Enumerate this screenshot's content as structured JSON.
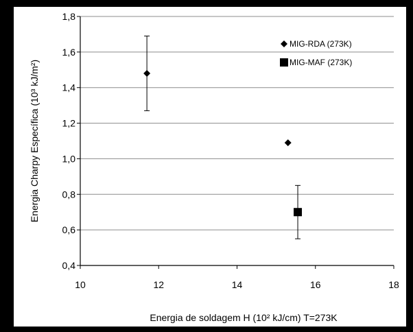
{
  "chart_data": {
    "type": "scatter",
    "xlabel": "Energia de soldagem H (10² kJ/cm)",
    "xlabel_suffix": "T=273K",
    "ylabel": "Energia Charpy Específica (10³ kJ/m²)",
    "xlim": [
      10,
      18
    ],
    "ylim": [
      0.4,
      1.8
    ],
    "x_ticks": [
      10,
      12,
      14,
      16,
      18
    ],
    "x_tick_labels": [
      "10",
      "12",
      "14",
      "16",
      "18"
    ],
    "y_ticks": [
      0.4,
      0.6,
      0.8,
      1.0,
      1.2,
      1.4,
      1.6,
      1.8
    ],
    "y_tick_labels": [
      "0,4",
      "0,6",
      "0,8",
      "1,0",
      "1,2",
      "1,4",
      "1,6",
      "1,8"
    ],
    "grid": "horizontal",
    "legend_position": "top-right",
    "series": [
      {
        "name": "MIG-RDA (273K)",
        "marker": "diamond",
        "color": "#000000",
        "points": [
          {
            "x": 11.7,
            "y": 1.48,
            "ylow": 1.27,
            "yhigh": 1.69
          },
          {
            "x": 15.3,
            "y": 1.09
          }
        ]
      },
      {
        "name": "MIG-MAF (273K)",
        "marker": "square",
        "color": "#000000",
        "points": [
          {
            "x": 15.55,
            "y": 0.7,
            "ylow": 0.55,
            "yhigh": 0.85
          }
        ]
      }
    ]
  }
}
